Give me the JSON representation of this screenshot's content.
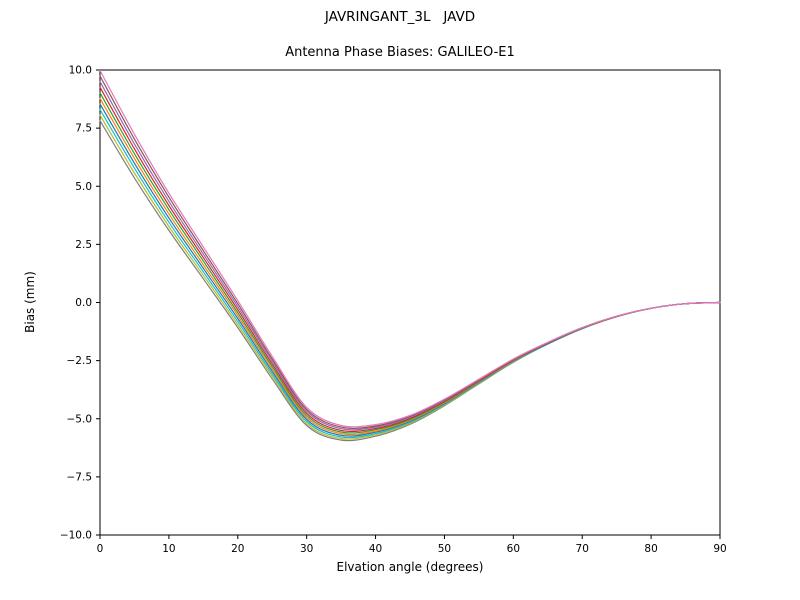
{
  "figure": {
    "title": "JAVRINGANT_3L   JAVD",
    "subtitle": "Antenna Phase Biases: GALILEO-E1"
  },
  "chart_data": {
    "type": "line",
    "title": "JAVRINGANT_3L   JAVD",
    "subtitle": "Antenna Phase Biases: GALILEO-E1",
    "xlabel": "Elvation angle (degrees)",
    "ylabel": "Bias (mm)",
    "xlim": [
      0,
      90
    ],
    "ylim": [
      -10,
      10
    ],
    "xticks": [
      0,
      10,
      20,
      30,
      40,
      50,
      60,
      70,
      80,
      90
    ],
    "yticks": [
      -10,
      -7.5,
      -5,
      -2.5,
      0,
      2.5,
      5,
      7.5,
      10
    ],
    "grid": false,
    "legend": "none",
    "x": [
      0,
      5,
      10,
      15,
      20,
      25,
      30,
      35,
      40,
      45,
      50,
      55,
      60,
      65,
      70,
      75,
      80,
      85,
      90
    ],
    "series": [
      {
        "name": "curve-01",
        "color": "#7f7f7f",
        "values": [
          7.82,
          5.36,
          3.1,
          1.02,
          -1.08,
          -3.28,
          -5.29,
          -5.92,
          -5.75,
          -5.24,
          -4.44,
          -3.5,
          -2.57,
          -1.79,
          -1.13,
          -0.61,
          -0.25,
          -0.05,
          0.0
        ]
      },
      {
        "name": "curve-02",
        "color": "#bcbd22",
        "values": [
          8.06,
          5.57,
          3.27,
          1.17,
          -0.95,
          -3.17,
          -5.21,
          -5.85,
          -5.69,
          -5.2,
          -4.41,
          -3.48,
          -2.55,
          -1.78,
          -1.12,
          -0.61,
          -0.25,
          -0.05,
          0.0
        ]
      },
      {
        "name": "curve-03",
        "color": "#17becf",
        "values": [
          8.3,
          5.78,
          3.45,
          1.32,
          -0.82,
          -3.07,
          -5.12,
          -5.78,
          -5.64,
          -5.16,
          -4.38,
          -3.46,
          -2.54,
          -1.78,
          -1.11,
          -0.61,
          -0.25,
          -0.05,
          0.0
        ]
      },
      {
        "name": "curve-04",
        "color": "#1f77b4",
        "values": [
          8.54,
          5.99,
          3.63,
          1.47,
          -0.69,
          -2.96,
          -5.03,
          -5.71,
          -5.58,
          -5.11,
          -4.35,
          -3.43,
          -2.52,
          -1.77,
          -1.11,
          -0.6,
          -0.25,
          -0.05,
          0.0
        ]
      },
      {
        "name": "curve-05",
        "color": "#ff7f0e",
        "values": [
          8.78,
          6.2,
          3.81,
          1.62,
          -0.56,
          -2.85,
          -4.94,
          -5.64,
          -5.53,
          -5.07,
          -4.32,
          -3.41,
          -2.51,
          -1.75,
          -1.1,
          -0.6,
          -0.25,
          -0.05,
          0.0
        ]
      },
      {
        "name": "curve-06",
        "color": "#2ca02c",
        "values": [
          9.02,
          6.4,
          3.99,
          1.78,
          -0.44,
          -2.75,
          -4.86,
          -5.57,
          -5.47,
          -5.03,
          -4.28,
          -3.39,
          -2.49,
          -1.75,
          -1.1,
          -0.6,
          -0.25,
          -0.05,
          0.0
        ]
      },
      {
        "name": "curve-07",
        "color": "#d62728",
        "values": [
          9.26,
          6.61,
          4.17,
          1.93,
          -0.31,
          -2.64,
          -4.77,
          -5.5,
          -5.42,
          -4.99,
          -4.25,
          -3.37,
          -2.48,
          -1.74,
          -1.09,
          -0.6,
          -0.25,
          -0.05,
          0.0
        ]
      },
      {
        "name": "curve-08",
        "color": "#9467bd",
        "values": [
          9.5,
          6.82,
          4.35,
          2.08,
          -0.18,
          -2.53,
          -4.68,
          -5.43,
          -5.36,
          -4.94,
          -4.22,
          -3.34,
          -2.46,
          -1.73,
          -1.09,
          -0.59,
          -0.25,
          -0.05,
          0.0
        ]
      },
      {
        "name": "curve-09",
        "color": "#8c564b",
        "values": [
          9.74,
          7.03,
          4.53,
          2.23,
          -0.05,
          -2.43,
          -4.6,
          -5.36,
          -5.31,
          -4.9,
          -4.19,
          -3.32,
          -2.45,
          -1.72,
          -1.08,
          -0.59,
          -0.25,
          -0.05,
          0.0
        ]
      },
      {
        "name": "curve-10",
        "color": "#e377c2",
        "values": [
          9.98,
          7.24,
          4.7,
          2.39,
          0.08,
          -2.32,
          -4.51,
          -5.29,
          -5.25,
          -4.86,
          -4.16,
          -3.3,
          -2.43,
          -1.71,
          -1.08,
          -0.59,
          -0.25,
          -0.05,
          0.0
        ]
      }
    ]
  }
}
